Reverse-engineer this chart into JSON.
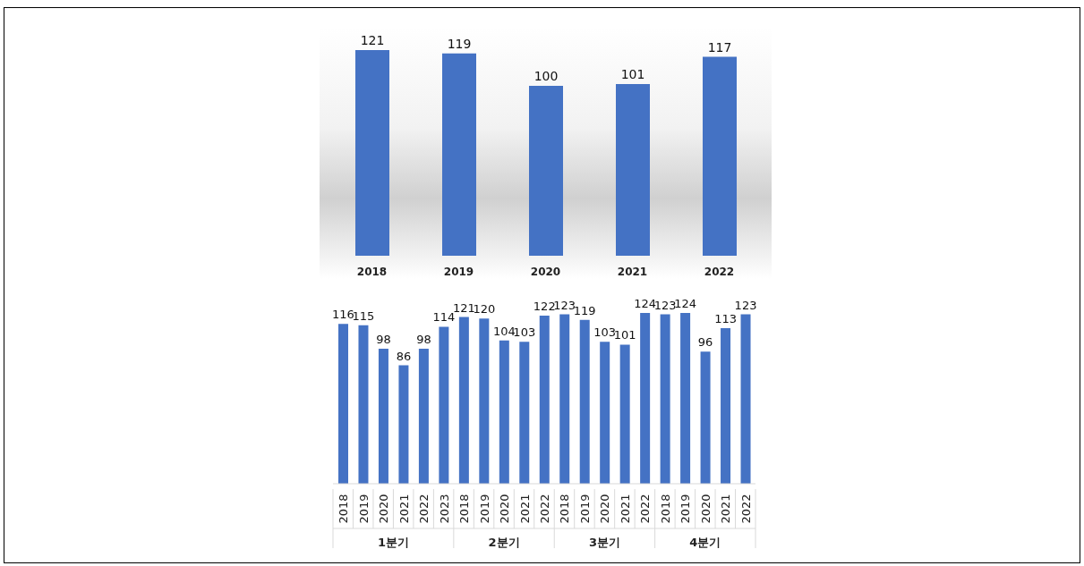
{
  "chart_data": [
    {
      "type": "bar",
      "categories": [
        "2018",
        "2019",
        "2020",
        "2021",
        "2022"
      ],
      "values": [
        121,
        119,
        100,
        101,
        117
      ],
      "color": "#4472c4",
      "data_labels": true
    },
    {
      "type": "bar",
      "categories": [
        "2018",
        "2019",
        "2020",
        "2021",
        "2022",
        "2023",
        "2018",
        "2019",
        "2020",
        "2021",
        "2022",
        "2018",
        "2019",
        "2020",
        "2021",
        "2022",
        "2018",
        "2019",
        "2020",
        "2021",
        "2022"
      ],
      "values": [
        116,
        115,
        98,
        86,
        98,
        114,
        121,
        120,
        104,
        103,
        122,
        123,
        119,
        103,
        101,
        124,
        123,
        124,
        96,
        113,
        123
      ],
      "color": "#4472c4",
      "data_labels": true,
      "annotations": [
        "1분기",
        "2분기",
        "3분기",
        "4분기"
      ]
    }
  ]
}
